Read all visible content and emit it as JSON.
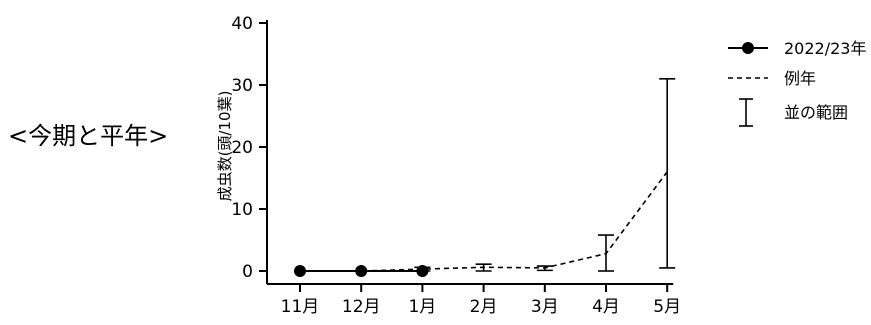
{
  "side_label": "<今期と平年>",
  "chart_data": {
    "type": "line",
    "title": "",
    "xlabel": "",
    "ylabel": "成虫数(頭/10葉)",
    "categories": [
      "11月",
      "12月",
      "1月",
      "2月",
      "3月",
      "4月",
      "5月"
    ],
    "ylim": [
      0,
      40
    ],
    "yticks": [
      0,
      10,
      20,
      30,
      40
    ],
    "series": [
      {
        "name": "2022/23年",
        "style": "solid-with-filled-circles",
        "values": [
          0,
          0,
          0,
          null,
          null,
          null,
          null
        ]
      },
      {
        "name": "例年",
        "style": "dashed",
        "values": [
          0,
          0,
          0.3,
          0.6,
          0.5,
          2.8,
          16
        ]
      }
    ],
    "range_bars": {
      "name": "並の範囲",
      "low": [
        null,
        null,
        0,
        0,
        0.1,
        0,
        0.5
      ],
      "high": [
        null,
        null,
        0.6,
        1.1,
        0.8,
        5.8,
        31
      ]
    },
    "legend_position": "top-right",
    "grid": false
  }
}
